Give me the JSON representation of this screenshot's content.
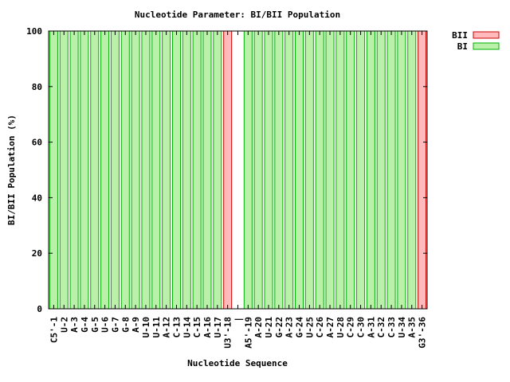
{
  "chart_data": {
    "type": "bar",
    "stacked": true,
    "title": "Nucleotide Parameter: BI/BII Population",
    "xlabel": "Nucleotide Sequence",
    "ylabel": "BI/BII Population (%)",
    "ylim": [
      0,
      100
    ],
    "yticks": [
      0,
      20,
      40,
      60,
      80,
      100
    ],
    "legend_position": "top-right outside",
    "grid": false,
    "categories": [
      "C5'-1",
      "U-2",
      "A-3",
      "G-4",
      "G-5",
      "U-6",
      "G-7",
      "G-8",
      "A-9",
      "U-10",
      "U-11",
      "A-12",
      "C-13",
      "U-14",
      "C-15",
      "A-16",
      "U-17",
      "U3'-18",
      "|",
      "A5'-19",
      "A-20",
      "U-21",
      "G-22",
      "A-23",
      "G-24",
      "U-25",
      "C-26",
      "A-27",
      "U-28",
      "C-29",
      "C-30",
      "A-31",
      "C-32",
      "C-33",
      "U-34",
      "A-35",
      "G3'-36"
    ],
    "series": [
      {
        "name": "BII",
        "color": "#ffbbbb",
        "stroke": "#cc0000",
        "values": [
          0,
          0,
          0,
          0,
          0,
          0,
          0,
          0,
          0,
          0,
          0,
          0,
          0,
          0,
          0,
          0,
          0,
          100,
          0,
          0,
          0,
          0,
          0,
          0,
          0,
          0,
          0,
          0,
          0,
          0,
          0,
          0,
          0,
          0,
          0,
          0,
          100
        ]
      },
      {
        "name": "BI",
        "color": "#bbf0aa",
        "stroke": "#00b000",
        "values": [
          100,
          100,
          100,
          100,
          100,
          100,
          100,
          100,
          100,
          100,
          100,
          100,
          100,
          100,
          100,
          100,
          100,
          0,
          0,
          100,
          100,
          100,
          100,
          100,
          100,
          100,
          100,
          100,
          100,
          100,
          100,
          100,
          100,
          100,
          100,
          100,
          0
        ]
      }
    ]
  }
}
